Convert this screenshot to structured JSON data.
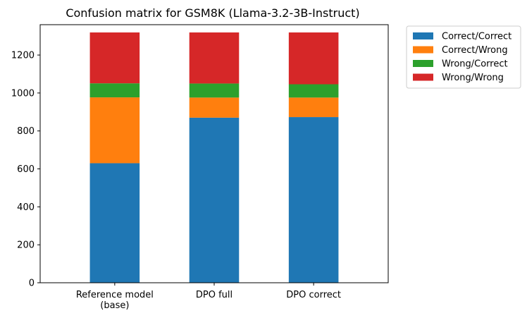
{
  "chart_data": {
    "type": "bar",
    "stacked": true,
    "title": "Confusion matrix for GSM8K (Llama-3.2-3B-Instruct)",
    "xlabel": "",
    "ylabel": "",
    "categories": [
      [
        "Reference model",
        "(base)"
      ],
      [
        "DPO full"
      ],
      [
        "DPO correct"
      ]
    ],
    "ylim": [
      0,
      1360
    ],
    "yticks": [
      0,
      200,
      400,
      600,
      800,
      1000,
      1200
    ],
    "grid": false,
    "legend_position": "outside-top-right",
    "series": [
      {
        "name": "Correct/Correct",
        "color": "#1f77b4",
        "values": [
          630,
          870,
          873
        ]
      },
      {
        "name": "Correct/Wrong",
        "color": "#ff7f0e",
        "values": [
          347,
          106,
          103
        ]
      },
      {
        "name": "Wrong/Correct",
        "color": "#2ca02c",
        "values": [
          74,
          74,
          70
        ]
      },
      {
        "name": "Wrong/Wrong",
        "color": "#d62728",
        "values": [
          268,
          269,
          273
        ]
      }
    ]
  }
}
